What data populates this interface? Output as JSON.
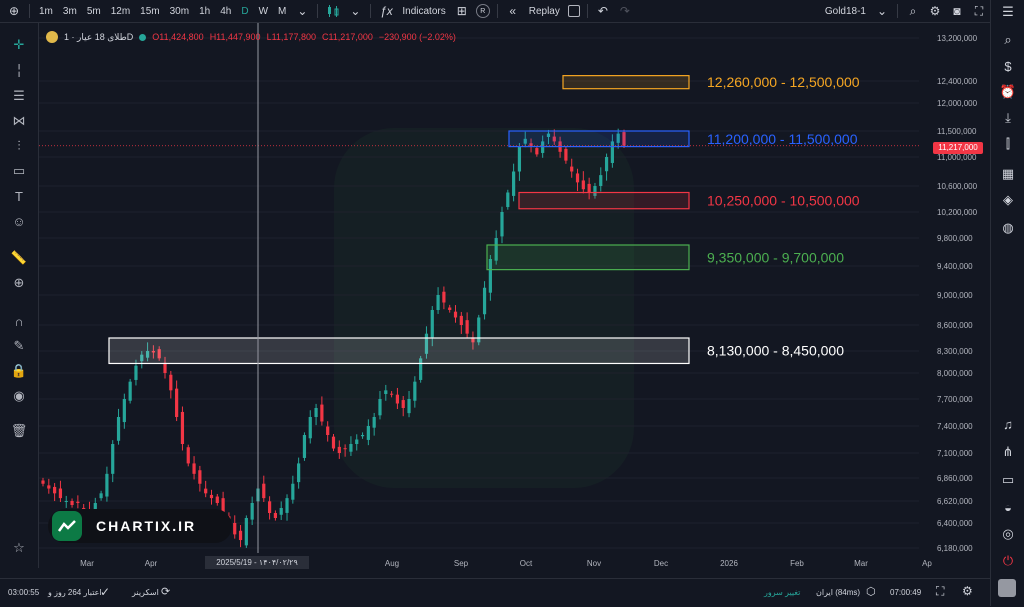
{
  "toolbar": {
    "timeframes": [
      "1m",
      "3m",
      "5m",
      "12m",
      "15m",
      "30m",
      "1h",
      "4h",
      "D",
      "W",
      "M"
    ],
    "active_timeframe": "D",
    "indicators_label": "Indicators",
    "replay_label": "Replay",
    "symbol_label": "Gold18-1",
    "r_badge": "R"
  },
  "legend": {
    "symbol": "طلای 18 عیار · 1D",
    "open": "O11,424,800",
    "high": "H11,447,900",
    "low": "L11,177,800",
    "close": "C11,217,000",
    "change": "−230,900 (−2.02%)"
  },
  "colors": {
    "bg": "#131722",
    "up": "#26a69a",
    "down": "#f23645",
    "zone_orange": "#f5a623",
    "zone_blue": "#2962ff",
    "zone_red": "#f23645",
    "zone_green": "#4caf50",
    "zone_white": "#ffffff"
  },
  "chart_data": {
    "type": "candlestick",
    "y_axis_labels": [
      "13,200,000",
      "12,400,000",
      "12,000,000",
      "11,500,000",
      "11,000,000",
      "10,600,000",
      "10,200,000",
      "9,800,000",
      "9,400,000",
      "9,000,000",
      "8,600,000",
      "8,300,000",
      "8,000,000",
      "7,700,000",
      "7,400,000",
      "7,100,000",
      "6,860,000",
      "6,620,000",
      "6,400,000",
      "6,180,000"
    ],
    "x_axis_labels": [
      "Mar",
      "Apr",
      "Aug",
      "Sep",
      "Oct",
      "Nov",
      "Dec",
      "2026",
      "Feb",
      "Mar",
      "Ap"
    ],
    "current_price": "11,217,000",
    "crosshair_date": "2025/5/19 - ۱۴۰۴/۰۲/۲۹",
    "zones": [
      {
        "label": "12,260,000 - 12,500,000",
        "low": 12260000,
        "high": 12500000,
        "color": "#f5a623"
      },
      {
        "label": "11,200,000 - 11,500,000",
        "low": 11200000,
        "high": 11500000,
        "color": "#2962ff"
      },
      {
        "label": "10,250,000 - 10,500,000",
        "low": 10250000,
        "high": 10500000,
        "color": "#f23645"
      },
      {
        "label": "9,350,000 - 9,700,000",
        "low": 9350000,
        "high": 9700000,
        "color": "#4caf50"
      },
      {
        "label": "8,130,000 - 8,450,000",
        "low": 8130000,
        "high": 8450000,
        "color": "#ffffff"
      }
    ],
    "close_series": [
      6800000,
      6750000,
      6700000,
      6650000,
      6620000,
      6580000,
      6600000,
      6550000,
      6500000,
      6600000,
      6700000,
      6900000,
      7200000,
      7500000,
      7700000,
      7900000,
      8100000,
      8250000,
      8300000,
      8280000,
      8200000,
      8000000,
      7800000,
      7500000,
      7200000,
      7000000,
      6900000,
      6800000,
      6700000,
      6650000,
      6600000,
      6500000,
      6400000,
      6300000,
      6250000,
      6450000,
      6600000,
      6750000,
      6650000,
      6500000,
      6450000,
      6550000,
      6650000,
      6800000,
      7000000,
      7300000,
      7500000,
      7600000,
      7450000,
      7300000,
      7150000,
      7100000,
      7150000,
      7200000,
      7250000,
      7300000,
      7400000,
      7500000,
      7700000,
      7800000,
      7750000,
      7650000,
      7600000,
      7700000,
      7900000,
      8200000,
      8500000,
      8800000,
      9000000,
      8900000,
      8800000,
      8700000,
      8600000,
      8500000,
      8400000,
      8700000,
      9100000,
      9500000,
      9800000,
      10200000,
      10500000,
      10800000,
      11200000,
      11350000,
      11200000,
      11050000,
      11300000,
      11450000,
      11300000,
      11100000,
      10950000,
      10800000,
      10650000,
      10550000,
      10500000,
      10600000,
      10750000,
      11000000,
      11300000,
      11450000,
      11217000
    ]
  },
  "logo": {
    "text": "CHARTIX.IR"
  },
  "bottombar": {
    "time_left": "03:00:55",
    "credit": "اعتبار 264 روز و",
    "screener": "اسکرینر",
    "server_change": "تغییر سرور",
    "server": "ایران (84ms)",
    "clock": "07:00:49"
  }
}
